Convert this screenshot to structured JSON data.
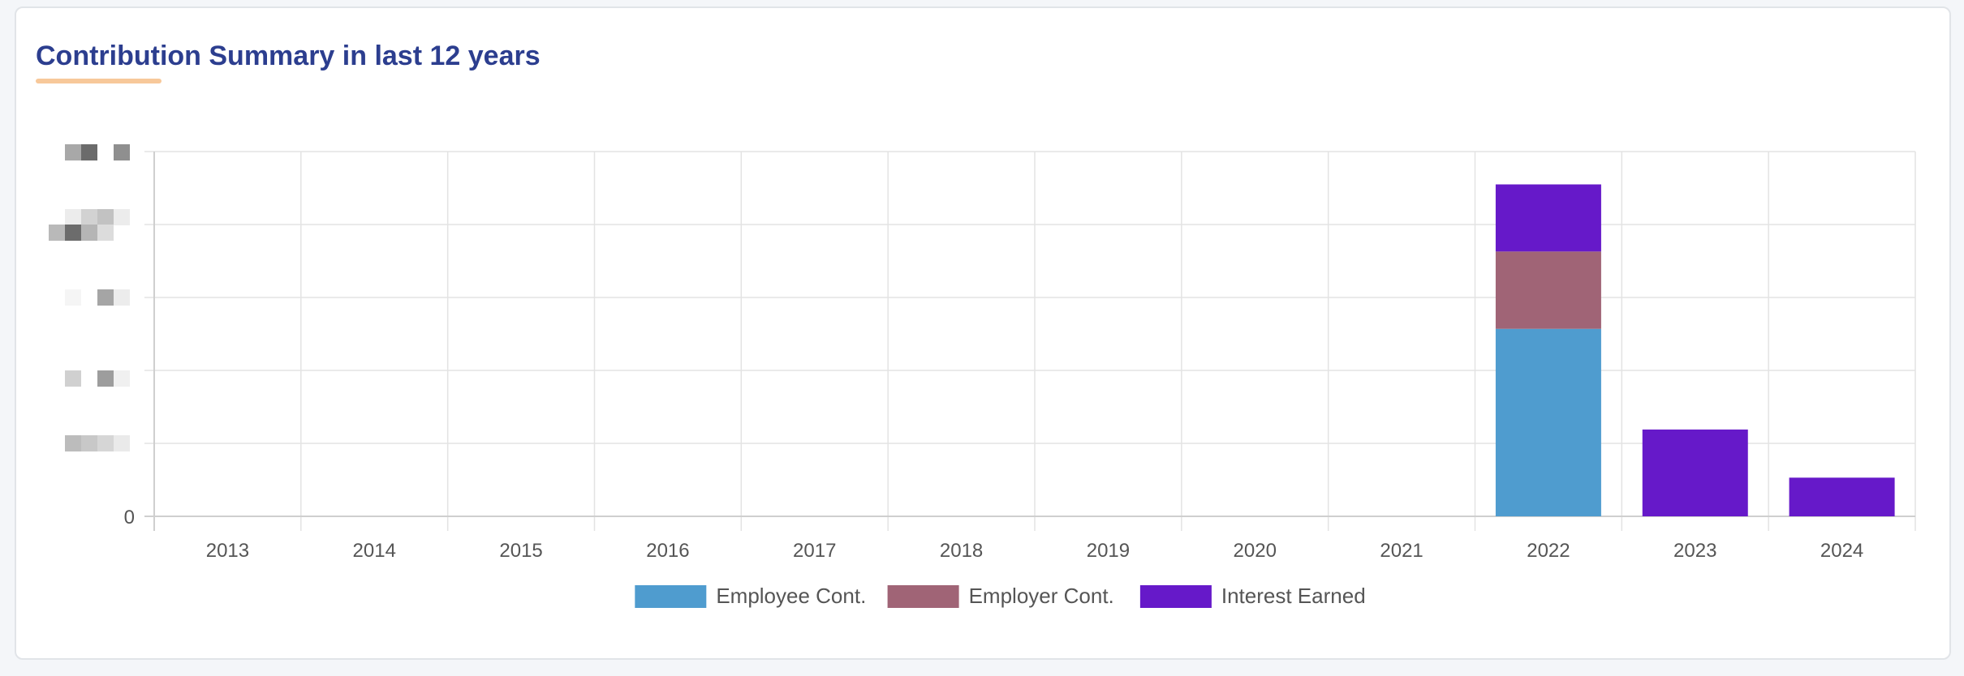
{
  "card": {
    "title": "Contribution Summary in last 12 years"
  },
  "colors": {
    "title": "#2c3e8f",
    "underline": "#f7c89a",
    "employee": "#4f9ccf",
    "employer": "#a06476",
    "interest": "#6619c9",
    "grid": "#e3e3e3",
    "tick_text": "#555555"
  },
  "chart_data": {
    "type": "bar",
    "stacked": true,
    "categories": [
      "2013",
      "2014",
      "2015",
      "2016",
      "2017",
      "2018",
      "2019",
      "2020",
      "2021",
      "2022",
      "2023",
      "2024"
    ],
    "series": [
      {
        "name": "Employee Cont.",
        "color": "#4f9ccf",
        "values": [
          0,
          0,
          0,
          0,
          0,
          0,
          0,
          0,
          0,
          2.57,
          0,
          0
        ]
      },
      {
        "name": "Employer Cont.",
        "color": "#a06476",
        "values": [
          0,
          0,
          0,
          0,
          0,
          0,
          0,
          0,
          0,
          1.06,
          0,
          0
        ]
      },
      {
        "name": "Interest Earned",
        "color": "#6619c9",
        "values": [
          0,
          0,
          0,
          0,
          0,
          0,
          0,
          0,
          0,
          0.92,
          1.19,
          0.53
        ]
      }
    ],
    "y_tick_labels": [
      "0"
    ],
    "y_tick_values_obscured": true,
    "ylim": [
      0,
      5
    ],
    "ytick_count": 6,
    "grid": true,
    "legend_position": "bottom-center",
    "title": "",
    "xlabel": "",
    "ylabel": ""
  }
}
